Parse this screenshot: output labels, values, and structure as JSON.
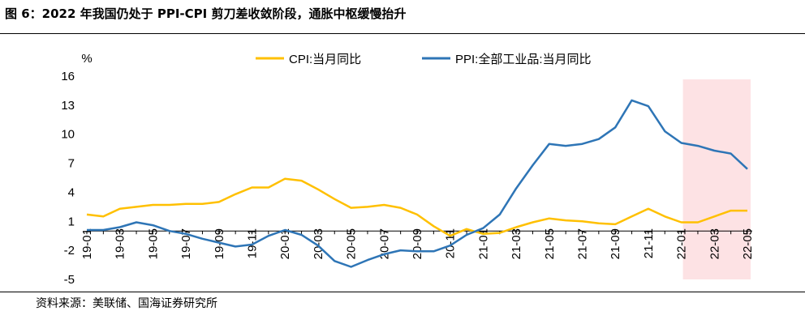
{
  "figure": {
    "title": "图 6：2022 年我国仍处于 PPI-CPI 剪刀差收敛阶段，通胀中枢缓慢抬升",
    "source": "资料来源：美联储、国海证券研究所"
  },
  "chart_data": {
    "type": "line",
    "ylabel": "%",
    "ylim": [
      -5,
      16
    ],
    "yticks": [
      16,
      13,
      10,
      7,
      4,
      1,
      -2,
      -5
    ],
    "x": [
      "19-01",
      "19-02",
      "19-03",
      "19-04",
      "19-05",
      "19-06",
      "19-07",
      "19-08",
      "19-09",
      "19-10",
      "19-11",
      "19-12",
      "20-01",
      "20-02",
      "20-03",
      "20-04",
      "20-05",
      "20-06",
      "20-07",
      "20-08",
      "20-09",
      "20-10",
      "20-11",
      "20-12",
      "21-01",
      "21-02",
      "21-03",
      "21-04",
      "21-05",
      "21-06",
      "21-07",
      "21-08",
      "21-09",
      "21-10",
      "21-11",
      "21-12",
      "22-01",
      "22-02",
      "22-03",
      "22-04",
      "22-05"
    ],
    "xtick_labels": [
      "19-01",
      "19-03",
      "19-05",
      "19-07",
      "19-09",
      "19-11",
      "20-01",
      "20-03",
      "20-05",
      "20-07",
      "20-09",
      "20-11",
      "21-01",
      "21-03",
      "21-05",
      "21-07",
      "21-09",
      "21-11",
      "22-01",
      "22-03",
      "22-05"
    ],
    "highlight_range": [
      "22-01",
      "22-05"
    ],
    "highlight_color": "#FDE2E4",
    "grid": false,
    "legend_position": "top",
    "series": [
      {
        "name": "CPI:当月同比",
        "color": "#FFC000",
        "values": [
          1.7,
          1.5,
          2.3,
          2.5,
          2.7,
          2.7,
          2.8,
          2.8,
          3.0,
          3.8,
          4.5,
          4.5,
          5.4,
          5.2,
          4.3,
          3.3,
          2.4,
          2.5,
          2.7,
          2.4,
          1.7,
          0.5,
          -0.5,
          0.2,
          -0.3,
          -0.2,
          0.4,
          0.9,
          1.3,
          1.1,
          1.0,
          0.8,
          0.7,
          1.5,
          2.3,
          1.5,
          0.9,
          0.9,
          1.5,
          2.1,
          2.1
        ]
      },
      {
        "name": "PPI:全部工业品:当月同比",
        "color": "#2E75B6",
        "values": [
          0.1,
          0.1,
          0.4,
          0.9,
          0.6,
          0.0,
          -0.3,
          -0.8,
          -1.2,
          -1.6,
          -1.4,
          -0.5,
          0.1,
          -0.4,
          -1.5,
          -3.1,
          -3.7,
          -3.0,
          -2.4,
          -2.0,
          -2.1,
          -2.1,
          -1.5,
          -0.4,
          0.3,
          1.7,
          4.4,
          6.8,
          9.0,
          8.8,
          9.0,
          9.5,
          10.7,
          13.5,
          12.9,
          10.3,
          9.1,
          8.8,
          8.3,
          8.0,
          6.4
        ]
      }
    ]
  }
}
